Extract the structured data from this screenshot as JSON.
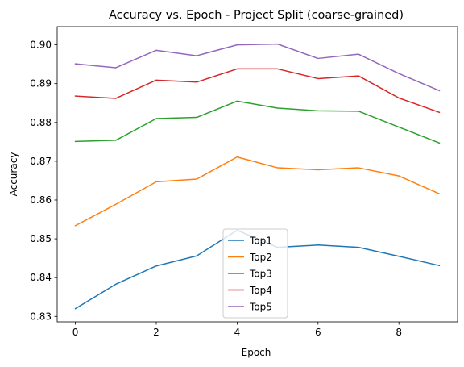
{
  "chart_data": {
    "type": "line",
    "title": "Accuracy vs. Epoch - Project Split (coarse-grained)",
    "xlabel": "Epoch",
    "ylabel": "Accuracy",
    "x": [
      0,
      1,
      2,
      3,
      4,
      5,
      6,
      7,
      8,
      9
    ],
    "xlim": [
      -0.45,
      9.45
    ],
    "ylim": [
      0.8286,
      0.9047
    ],
    "xticks": [
      0,
      2,
      4,
      6,
      8
    ],
    "xtick_labels": [
      "0",
      "2",
      "4",
      "6",
      "8"
    ],
    "yticks": [
      0.83,
      0.84,
      0.85,
      0.86,
      0.87,
      0.88,
      0.89,
      0.9
    ],
    "ytick_labels": [
      "0.83",
      "0.84",
      "0.85",
      "0.86",
      "0.87",
      "0.88",
      "0.89",
      "0.90"
    ],
    "grid": false,
    "legend_position": "lower-center",
    "series": [
      {
        "name": "Top1",
        "color": "#1f77b4",
        "values": [
          0.832,
          0.8383,
          0.843,
          0.8456,
          0.8522,
          0.8478,
          0.8484,
          0.8478,
          0.8455,
          0.8431
        ]
      },
      {
        "name": "Top2",
        "color": "#ff7f0e",
        "values": [
          0.8534,
          0.8589,
          0.8647,
          0.8654,
          0.8711,
          0.8683,
          0.8678,
          0.8683,
          0.8662,
          0.8616
        ]
      },
      {
        "name": "Top3",
        "color": "#2ca02c",
        "values": [
          0.8751,
          0.8754,
          0.881,
          0.8813,
          0.8855,
          0.8837,
          0.883,
          0.8829,
          0.8788,
          0.8747
        ]
      },
      {
        "name": "Top4",
        "color": "#d62728",
        "values": [
          0.8868,
          0.8862,
          0.8909,
          0.8904,
          0.8938,
          0.8938,
          0.8913,
          0.892,
          0.8863,
          0.8826
        ]
      },
      {
        "name": "Top5",
        "color": "#9467bd",
        "values": [
          0.8951,
          0.8941,
          0.8986,
          0.8972,
          0.9,
          0.9002,
          0.8965,
          0.8976,
          0.8926,
          0.8882
        ]
      }
    ]
  }
}
